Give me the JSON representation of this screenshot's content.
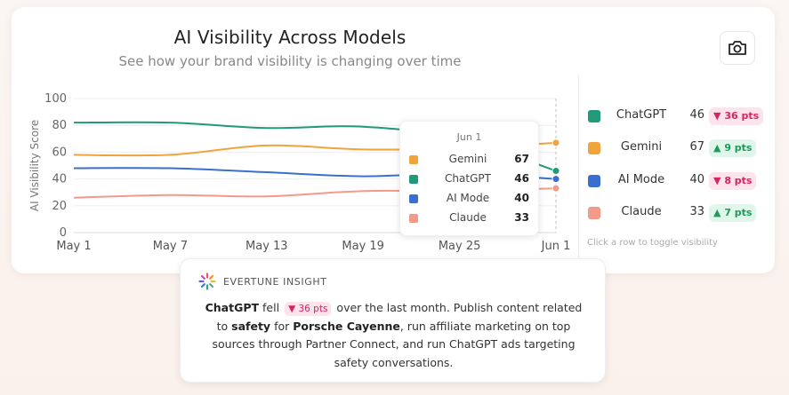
{
  "header": {
    "title": "AI Visibility Across Models",
    "subtitle": "See how your brand visibility is changing over time"
  },
  "toolbar": {
    "camera_icon": "camera-icon"
  },
  "chart_data": {
    "type": "line",
    "ylabel": "AI Visibility Score",
    "ylim": [
      0,
      100
    ],
    "yticks": [
      "0",
      "20",
      "40",
      "60",
      "80",
      "100"
    ],
    "xticks": [
      "May 1",
      "May 7",
      "May 13",
      "May 19",
      "May 25",
      "Jun 1"
    ],
    "grid": true,
    "series": [
      {
        "name": "ChatGPT",
        "color": "#1f9a7a",
        "values": [
          82,
          82,
          78,
          79,
          70,
          46
        ]
      },
      {
        "name": "Gemini",
        "color": "#f1a33c",
        "values": [
          58,
          58,
          65,
          62,
          63,
          67
        ]
      },
      {
        "name": "AI Mode",
        "color": "#3b6fcf",
        "values": [
          48,
          48,
          45,
          42,
          44,
          40
        ]
      },
      {
        "name": "Claude",
        "color": "#f39a8a",
        "values": [
          26,
          28,
          27,
          31,
          31,
          33
        ]
      }
    ]
  },
  "tooltip": {
    "date": "Jun 1",
    "rows": [
      {
        "name": "Gemini",
        "value": "67",
        "color": "#f1a33c"
      },
      {
        "name": "ChatGPT",
        "value": "46",
        "color": "#1f9a7a"
      },
      {
        "name": "AI Mode",
        "value": "40",
        "color": "#3b6fcf"
      },
      {
        "name": "Claude",
        "value": "33",
        "color": "#f39a8a"
      }
    ]
  },
  "legend": {
    "rows": [
      {
        "name": "ChatGPT",
        "value": "46",
        "change": "36 pts",
        "direction": "down",
        "arrow": "▼",
        "color": "#1f9a7a"
      },
      {
        "name": "Gemini",
        "value": "67",
        "change": "9 pts",
        "direction": "up",
        "arrow": "▲",
        "color": "#f1a33c"
      },
      {
        "name": "AI Mode",
        "value": "40",
        "change": "8 pts",
        "direction": "down",
        "arrow": "▼",
        "color": "#3b6fcf"
      },
      {
        "name": "Claude",
        "value": "33",
        "change": "7 pts",
        "direction": "up",
        "arrow": "▲",
        "color": "#f39a8a"
      }
    ],
    "hint": "Click a row to toggle visibility"
  },
  "insight": {
    "label": "EVERTUNE INSIGHT",
    "model": "ChatGPT",
    "verb": "fell",
    "badge": "▼ 36 pts",
    "text1": "over the last month. Publish content related to",
    "topic": "safety",
    "text2": "for",
    "brand": "Porsche Cayenne",
    "text3": ", run affiliate marketing on top sources through Partner Connect, and run ChatGPT ads targeting safety conversations."
  }
}
